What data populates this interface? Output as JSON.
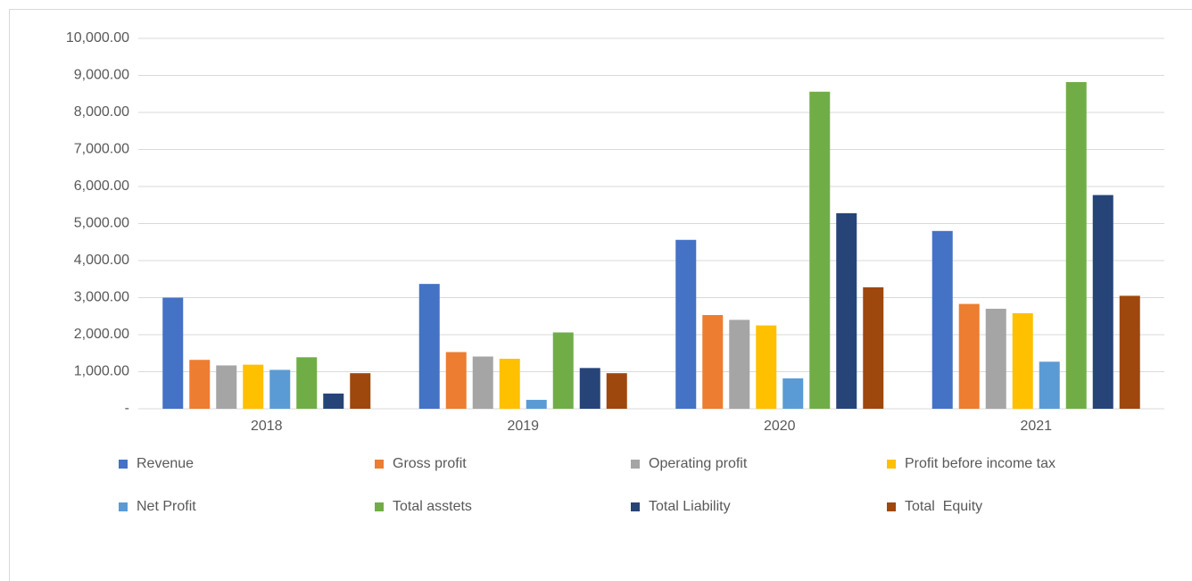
{
  "chart_data": {
    "type": "bar",
    "categories": [
      "2018",
      "2019",
      "2020",
      "2021"
    ],
    "series": [
      {
        "name": "Revenue",
        "color": "#4472c4",
        "values": [
          3000,
          3370,
          4560,
          4800
        ]
      },
      {
        "name": "Gross profit",
        "color": "#ed7d31",
        "values": [
          1320,
          1530,
          2530,
          2830
        ]
      },
      {
        "name": "Operating profit",
        "color": "#a5a5a5",
        "values": [
          1170,
          1410,
          2400,
          2700
        ]
      },
      {
        "name": "Profit before income tax",
        "color": "#ffc000",
        "values": [
          1190,
          1350,
          2250,
          2580
        ]
      },
      {
        "name": "Net Profit",
        "color": "#5b9bd5",
        "values": [
          1050,
          240,
          820,
          1270
        ]
      },
      {
        "name": "Total asstets",
        "color": "#70ad47",
        "values": [
          1390,
          2060,
          8560,
          8820
        ]
      },
      {
        "name": "Total Liability",
        "color": "#264478",
        "values": [
          410,
          1100,
          5280,
          5770
        ]
      },
      {
        "name": "Total  Equity",
        "color": "#9e480e",
        "values": [
          960,
          960,
          3280,
          3050
        ]
      }
    ],
    "ylim": [
      0,
      10000
    ],
    "yticks": [
      {
        "value": 0,
        "label": "-"
      },
      {
        "value": 1000,
        "label": "1,000.00"
      },
      {
        "value": 2000,
        "label": "2,000.00"
      },
      {
        "value": 3000,
        "label": "3,000.00"
      },
      {
        "value": 4000,
        "label": "4,000.00"
      },
      {
        "value": 5000,
        "label": "5,000.00"
      },
      {
        "value": 6000,
        "label": "6,000.00"
      },
      {
        "value": 7000,
        "label": "7,000.00"
      },
      {
        "value": 8000,
        "label": "8,000.00"
      },
      {
        "value": 9000,
        "label": "9,000.00"
      },
      {
        "value": 10000,
        "label": "10,000.00"
      }
    ],
    "grid": true,
    "legend": "bottom"
  }
}
